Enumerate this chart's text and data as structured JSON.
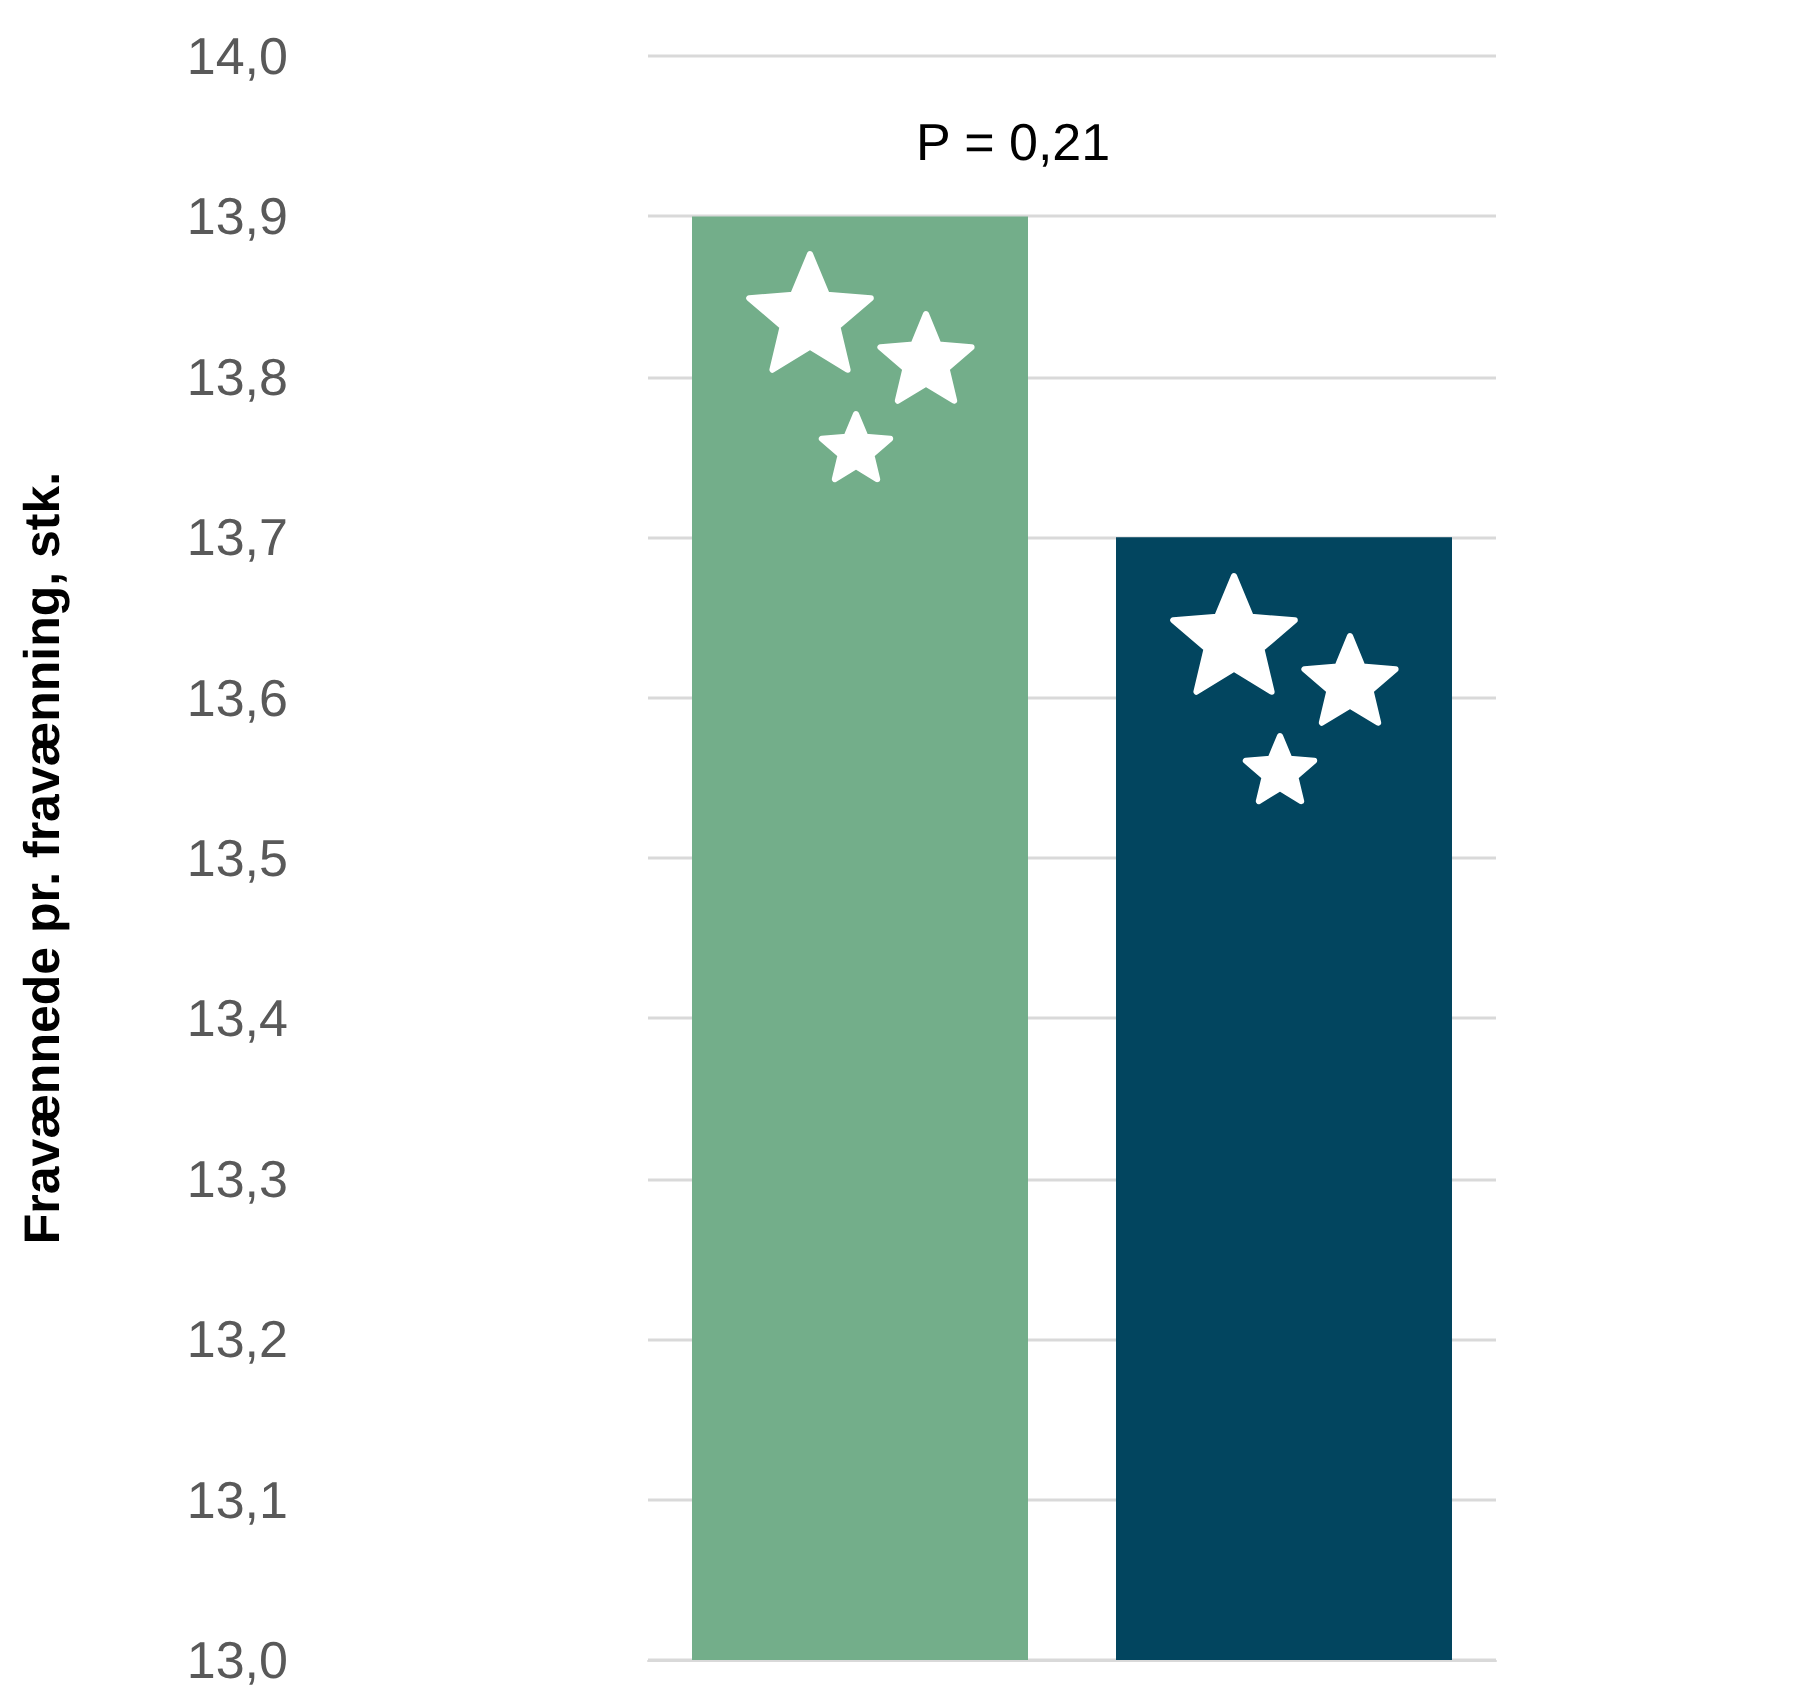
{
  "chart_data": {
    "type": "bar",
    "ylabel": "Fravænnede pr. fravænning, stk.",
    "categories": [
      null,
      null
    ],
    "values": [
      13.9,
      13.7
    ],
    "colors": [
      "#73ae8a",
      "#02455f"
    ],
    "ylim": [
      13.0,
      14.0
    ],
    "yticks": [
      {
        "value": 13.0,
        "label": "13,0"
      },
      {
        "value": 13.1,
        "label": "13,1"
      },
      {
        "value": 13.2,
        "label": "13,2"
      },
      {
        "value": 13.3,
        "label": "13,3"
      },
      {
        "value": 13.4,
        "label": "13,4"
      },
      {
        "value": 13.5,
        "label": "13,5"
      },
      {
        "value": 13.6,
        "label": "13,6"
      },
      {
        "value": 13.7,
        "label": "13,7"
      },
      {
        "value": 13.8,
        "label": "13,8"
      },
      {
        "value": 13.9,
        "label": "13,9"
      },
      {
        "value": 14.0,
        "label": "14,0"
      }
    ],
    "annotations": [
      "P = 0,21"
    ],
    "grid": "y"
  }
}
